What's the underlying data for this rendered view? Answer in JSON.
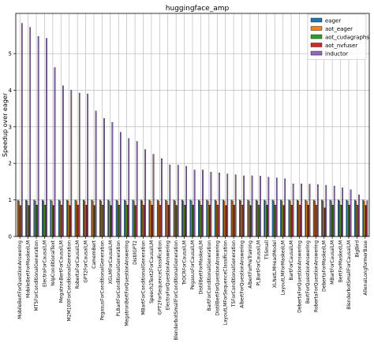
{
  "chart_data": {
    "type": "bar",
    "title": "huggingface_amp",
    "xlabel": "",
    "ylabel": "Speedup over eager",
    "ylim": [
      0,
      6.1
    ],
    "yticks": [
      0,
      1,
      2,
      3,
      4,
      5
    ],
    "grid": true,
    "legend_position": "top-right",
    "categories": [
      "MobileBertForQuestionAnswering",
      "MobileBertForMaskedLM",
      "MT5ForConditionalGeneration",
      "ElectraForCausalLM",
      "YelpConditionalText",
      "MegatronBertForCausalLM",
      "M2M100ForConditionalGeneration",
      "RobertaForCausalLM",
      "GPT2ForCausalLM",
      "CamemBert",
      "PegasusForConditionalGeneration",
      "XGLMForCausalLM",
      "PLBartForConditionalGeneration",
      "MegatronBertForQuestionAnswering",
      "DistilGPT2",
      "MBartForConditionalGeneration",
      "Speech2Text2ForCausalLM",
      "GPT2ForSequenceClassification",
      "ElectraForQuestionAnswering",
      "BlenderbotSmallForConditionalGeneration",
      "TrOCRForCausalLM",
      "PegasusForCausalLM",
      "DistilBertForMaskedLM",
      "BartForConditionalGeneration",
      "DistilBertForQuestionAnswering",
      "LayoutLMForSequenceClassification",
      "T5ForConditionalGeneration",
      "AlbertForQuestionAnswering",
      "AlbertForPreTraining",
      "PLBartForCausalLM",
      "T5Small",
      "XLNetLMHeadModel",
      "LayoutLMForMaskedLM",
      "BartForCausalLM",
      "DebertaForQuestionAnswering",
      "BertForQuestionAnswering",
      "RobertaForQuestionAnswering",
      "DebertaForMaskedLM",
      "MBartForCausalLM",
      "BertForMaskedLM",
      "BlenderbotSmallForCausalLM",
      "BigBird",
      "AllenaiLongformerBase"
    ],
    "series": [
      {
        "name": "eager",
        "color": "#1f77b4",
        "values": [
          1,
          1,
          1,
          1,
          1,
          1,
          1,
          1,
          1,
          1,
          1,
          1,
          1,
          1,
          1,
          1,
          1,
          1,
          1,
          1,
          1,
          1,
          1,
          1,
          1,
          1,
          1,
          1,
          1,
          1,
          1,
          1,
          1,
          1,
          1,
          1,
          1,
          1,
          1,
          1,
          1,
          1,
          1
        ]
      },
      {
        "name": "aot_eager",
        "color": "#ff7f0e",
        "values": [
          0.97,
          0.97,
          0.97,
          0.97,
          0.97,
          0.97,
          0.97,
          0.97,
          0.97,
          0.97,
          0.97,
          0.97,
          0.97,
          0.97,
          0.97,
          0.97,
          0.97,
          0.97,
          0.97,
          0.97,
          0.97,
          0.97,
          0.97,
          0.97,
          0.97,
          0.97,
          0.97,
          0.97,
          0.97,
          0.97,
          0.97,
          0.97,
          0.97,
          0.97,
          0.97,
          0.97,
          0.97,
          0.97,
          0.97,
          0.97,
          0.97,
          0.97,
          0.97
        ]
      },
      {
        "name": "aot_cudagraphs",
        "color": "#2ca02c",
        "values": [
          0.85,
          0.85,
          0.86,
          0.86,
          0.85,
          0.86,
          0.85,
          0.86,
          0.86,
          0.85,
          0.86,
          0.85,
          0.86,
          0.86,
          0.85,
          0.86,
          0.86,
          0.86,
          0.86,
          0.85,
          0.86,
          0.86,
          0.86,
          0.86,
          0.86,
          0.85,
          0.86,
          0.86,
          0.85,
          0.86,
          0.86,
          0.86,
          0.85,
          0.86,
          0.86,
          0.86,
          0.86,
          0.78,
          0.86,
          0.86,
          0.86,
          0.86,
          0.85
        ]
      },
      {
        "name": "aot_nvfuser",
        "color": "#d62728",
        "values": [
          0.85,
          0.85,
          0.86,
          0.86,
          0.85,
          0.86,
          0.85,
          0.86,
          0.86,
          0.85,
          0.86,
          0.85,
          0.86,
          0.86,
          0.85,
          0.86,
          0.86,
          0.86,
          0.86,
          0.85,
          0.86,
          0.86,
          0.86,
          0.86,
          0.86,
          0.85,
          0.86,
          0.86,
          0.85,
          0.86,
          0.86,
          0.86,
          0.85,
          0.86,
          0.86,
          0.86,
          0.86,
          0.78,
          0.86,
          0.86,
          0.86,
          0.86,
          0.85
        ]
      },
      {
        "name": "inductor",
        "color": "#9467bd",
        "values": [
          5.83,
          5.72,
          5.47,
          5.42,
          4.62,
          4.12,
          4.0,
          3.92,
          3.9,
          3.43,
          3.23,
          3.12,
          2.85,
          2.68,
          2.6,
          2.38,
          2.25,
          2.13,
          1.96,
          1.95,
          1.92,
          1.82,
          1.82,
          1.76,
          1.74,
          1.71,
          1.69,
          1.66,
          1.66,
          1.65,
          1.62,
          1.6,
          1.58,
          1.44,
          1.44,
          1.43,
          1.42,
          1.4,
          1.38,
          1.33,
          1.28,
          1.14,
          0.98
        ]
      }
    ]
  }
}
